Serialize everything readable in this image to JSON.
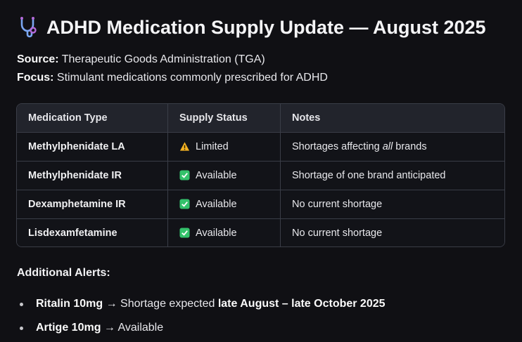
{
  "header": {
    "title": "ADHD Medication Supply Update — August 2025",
    "icon": "stethoscope-icon"
  },
  "meta": [
    {
      "label": "Source:",
      "value": "Therapeutic Goods Administration (TGA)"
    },
    {
      "label": "Focus:",
      "value": "Stimulant medications commonly prescribed for ADHD"
    }
  ],
  "table": {
    "headers": [
      "Medication Type",
      "Supply Status",
      "Notes"
    ],
    "rows": [
      {
        "medication": "Methylphenidate LA",
        "status": "Limited",
        "status_icon": "warning-icon",
        "notes_before": "Shortages affecting ",
        "notes_em": "all",
        "notes_after": " brands"
      },
      {
        "medication": "Methylphenidate IR",
        "status": "Available",
        "status_icon": "check-icon",
        "notes": "Shortage of one brand anticipated"
      },
      {
        "medication": "Dexamphetamine IR",
        "status": "Available",
        "status_icon": "check-icon",
        "notes": "No current shortage"
      },
      {
        "medication": "Lisdexamfetamine",
        "status": "Available",
        "status_icon": "check-icon",
        "notes": "No current shortage"
      }
    ]
  },
  "alerts": {
    "heading": "Additional Alerts:",
    "items": [
      {
        "name": "Ritalin 10mg",
        "arrow": "→",
        "text": " Shortage expected ",
        "bold": "late August – late October 2025"
      },
      {
        "name": "Artige 10mg",
        "arrow": "→",
        "text": " Available",
        "bold": ""
      }
    ]
  },
  "colors": {
    "warning": "#f5b323",
    "available": "#34c26b",
    "background": "#101014",
    "border": "#3a3d47"
  }
}
